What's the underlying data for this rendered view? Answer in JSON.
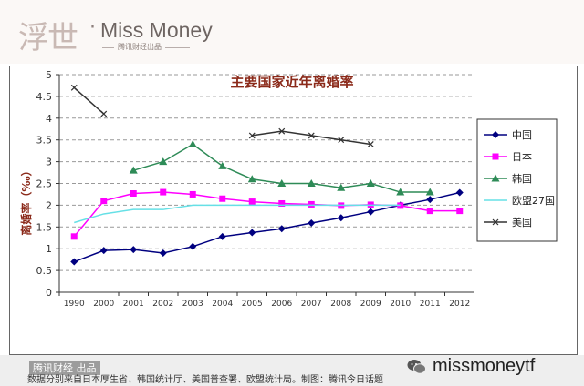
{
  "header": {
    "logo_cn": "浮世",
    "logo_dot": "·",
    "logo_en": "Miss Money",
    "logo_sub": "腾讯财经出品"
  },
  "footer": {
    "left_label": "腾讯财经 出品",
    "source_text": "数据分别来自日本厚生省、韩国统计厅、美国普查署、欧盟统计局。制图：腾讯今日话题",
    "watermark": "missmoneytf"
  },
  "chart_data": {
    "type": "line",
    "title": "主要国家近年离婚率",
    "xlabel": "",
    "ylabel": "离婚率（‰）",
    "x": [
      "1990",
      "2000",
      "2001",
      "2002",
      "2003",
      "2004",
      "2005",
      "2006",
      "2007",
      "2008",
      "2009",
      "2010",
      "2011",
      "2012"
    ],
    "ylim": [
      0,
      5
    ],
    "yticks": [
      "0",
      "0.5",
      "1",
      "1.5",
      "2",
      "2.5",
      "3",
      "3.5",
      "4",
      "4.5",
      "5"
    ],
    "grid": "horizontal-dashed",
    "legend": "right",
    "series": [
      {
        "name": "中国",
        "color": "#000080",
        "marker": "diamond",
        "values": [
          0.7,
          0.96,
          0.98,
          0.9,
          1.05,
          1.28,
          1.37,
          1.46,
          1.59,
          1.71,
          1.85,
          2.0,
          2.13,
          2.29
        ]
      },
      {
        "name": "日本",
        "color": "#ff00ff",
        "marker": "square",
        "values": [
          1.28,
          2.1,
          2.27,
          2.3,
          2.25,
          2.15,
          2.08,
          2.04,
          2.02,
          1.99,
          2.01,
          1.99,
          1.87,
          1.87
        ]
      },
      {
        "name": "韩国",
        "color": "#2e8b57",
        "marker": "triangle",
        "values": [
          null,
          null,
          2.8,
          3.0,
          3.4,
          2.9,
          2.6,
          2.5,
          2.5,
          2.4,
          2.5,
          2.3,
          2.3,
          null
        ]
      },
      {
        "name": "欧盟27国",
        "color": "#66e0e6",
        "marker": "none",
        "values": [
          1.6,
          1.8,
          1.9,
          1.9,
          2.0,
          2.0,
          2.0,
          2.0,
          2.0,
          2.0,
          2.0,
          2.0,
          null,
          null
        ]
      },
      {
        "name": "美国",
        "color": "#333333",
        "marker": "x",
        "values": [
          4.7,
          4.1,
          null,
          null,
          null,
          null,
          3.6,
          3.7,
          3.6,
          3.5,
          3.4,
          null,
          null,
          null
        ]
      }
    ]
  }
}
